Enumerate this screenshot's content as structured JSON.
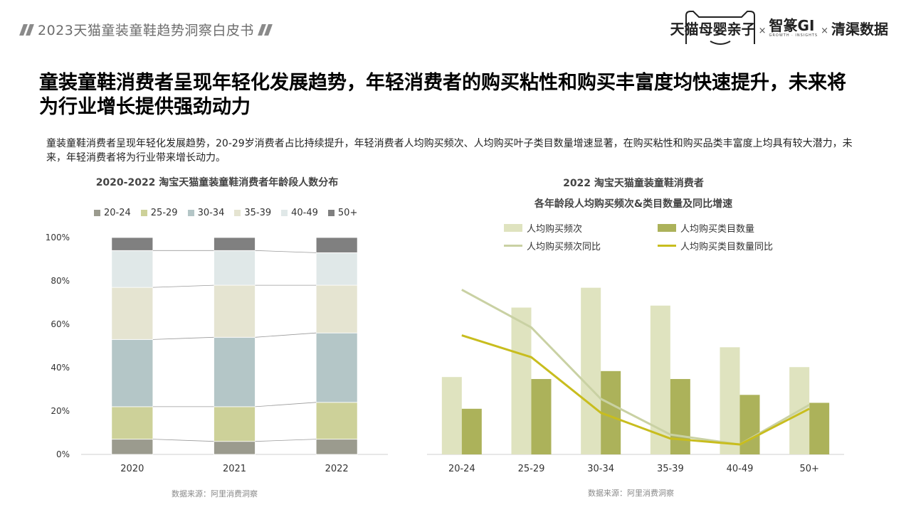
{
  "header": {
    "report_title": "2023天猫童装童鞋趋势洞察白皮书",
    "brand_tmall": "天猫母婴亲子",
    "brand_gi": "智篆GI",
    "brand_gi_sub": "GROWTH · INSIGHTS",
    "brand_qingqu": "清渠数据",
    "brand_sep": "×"
  },
  "headline": "童装童鞋消费者呈现年轻化发展趋势，年轻消费者的购买粘性和购买丰富度均快速提升，未来将为行业增长提供强劲动力",
  "intro": "童装童鞋消费者呈现年轻化发展趋势，20-29岁消费者占比持续提升，年轻消费者人均购买频次、人均购买叶子类目数量增速显著，在购买粘性和购买品类丰富度上均具有较大潜力，未来，年轻消费者将为行业带来增长动力。",
  "chart_data": [
    {
      "type": "bar",
      "stacked": true,
      "title": "2020-2022 淘宝天猫童装童鞋消费者年龄段人数分布",
      "categories": [
        "2020",
        "2021",
        "2022"
      ],
      "series": [
        {
          "name": "20-24",
          "color": "#9b9b8e",
          "values": [
            7,
            6,
            7
          ]
        },
        {
          "name": "25-29",
          "color": "#cdd199",
          "values": [
            15,
            16,
            17
          ]
        },
        {
          "name": "30-34",
          "color": "#b4c6c7",
          "values": [
            31,
            32,
            32
          ]
        },
        {
          "name": "35-39",
          "color": "#e5e4d1",
          "values": [
            24,
            24,
            22
          ]
        },
        {
          "name": "40-49",
          "color": "#e0e8e8",
          "values": [
            17,
            16,
            15
          ]
        },
        {
          "name": "50+",
          "color": "#808080",
          "values": [
            6,
            6,
            7
          ]
        }
      ],
      "ylim": [
        0,
        100
      ],
      "yticks": [
        "0%",
        "20%",
        "40%",
        "60%",
        "80%",
        "100%"
      ],
      "legend": "top",
      "source": "数据来源：阿里消费洞察"
    },
    {
      "type": "bar",
      "title_lines": [
        "2022 淘宝天猫童装童鞋消费者",
        "各年龄段人均购买频次&类目数量及同比增速"
      ],
      "categories": [
        "20-24",
        "25-29",
        "30-34",
        "35-39",
        "40-49",
        "50+"
      ],
      "series": [
        {
          "name": "人均购买频次",
          "kind": "bar",
          "color": "#dfe3bf",
          "values": [
            39,
            74,
            84,
            75,
            54,
            44
          ]
        },
        {
          "name": "人均购买类目数量",
          "kind": "bar",
          "color": "#acb25a",
          "values": [
            23,
            38,
            42,
            38,
            30,
            26
          ]
        },
        {
          "name": "人均购买频次同比",
          "kind": "line",
          "color": "#c9d1a3",
          "values": [
            83,
            64,
            28,
            10,
            5,
            25
          ]
        },
        {
          "name": "人均购买类目数量同比",
          "kind": "line",
          "color": "#c8bd1e",
          "values": [
            60,
            49,
            21,
            8,
            5,
            23
          ]
        }
      ],
      "ylim": [
        0,
        100
      ],
      "legend": "top",
      "source": "数据来源：阿里消费洞察"
    }
  ]
}
